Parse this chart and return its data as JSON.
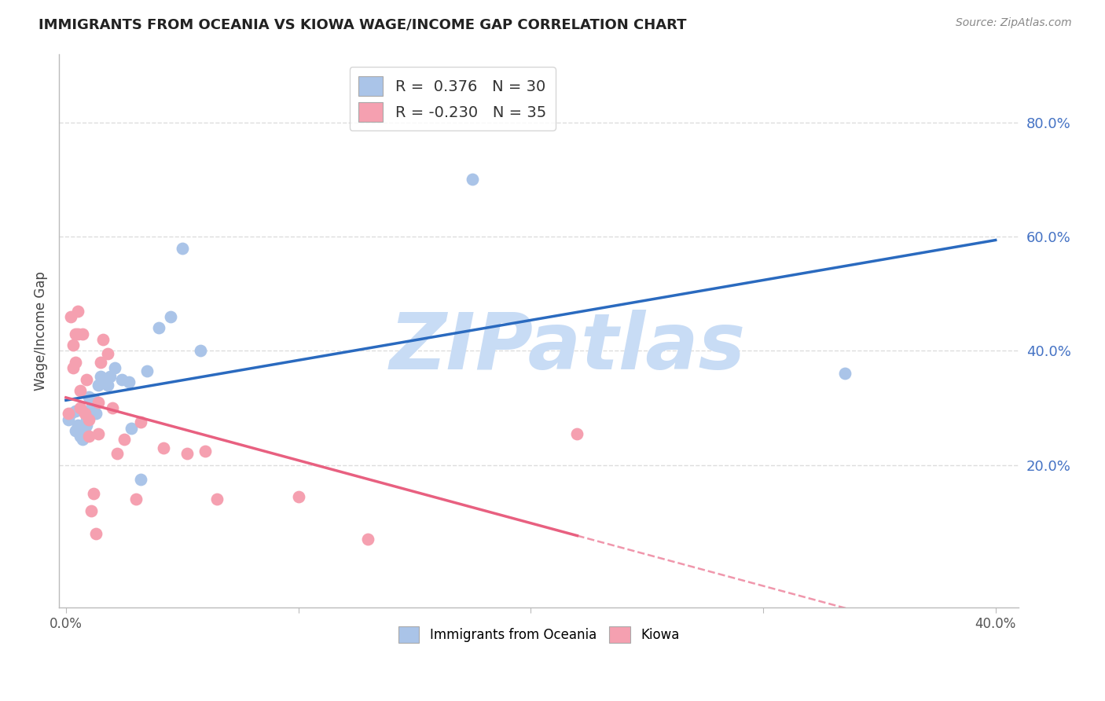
{
  "title": "IMMIGRANTS FROM OCEANIA VS KIOWA WAGE/INCOME GAP CORRELATION CHART",
  "source": "Source: ZipAtlas.com",
  "ylabel": "Wage/Income Gap",
  "legend_blue_label": "Immigrants from Oceania",
  "legend_pink_label": "Kiowa",
  "R_blue": 0.376,
  "N_blue": 30,
  "R_pink": -0.23,
  "N_pink": 35,
  "xlim": [
    -0.003,
    0.41
  ],
  "ylim": [
    -0.05,
    0.92
  ],
  "yticks_right": [
    0.2,
    0.4,
    0.6,
    0.8
  ],
  "ytick_labels_right": [
    "20.0%",
    "40.0%",
    "60.0%",
    "80.0%"
  ],
  "xticks": [
    0.0,
    0.1,
    0.2,
    0.3,
    0.4
  ],
  "xtick_labels": [
    "0.0%",
    "",
    "",
    "",
    "40.0%"
  ],
  "background_color": "#ffffff",
  "grid_color": "#dddddd",
  "blue_dot_color": "#aac4e8",
  "pink_dot_color": "#f5a0b0",
  "blue_line_color": "#2a6abf",
  "pink_line_color": "#e86080",
  "watermark_text": "ZIPatlas",
  "watermark_color": "#c8dcf5",
  "blue_scatter_x": [
    0.001,
    0.002,
    0.004,
    0.004,
    0.005,
    0.006,
    0.007,
    0.008,
    0.009,
    0.009,
    0.01,
    0.011,
    0.012,
    0.013,
    0.014,
    0.015,
    0.018,
    0.019,
    0.021,
    0.024,
    0.027,
    0.028,
    0.032,
    0.035,
    0.04,
    0.045,
    0.05,
    0.058,
    0.175,
    0.335
  ],
  "blue_scatter_y": [
    0.28,
    0.29,
    0.26,
    0.295,
    0.27,
    0.25,
    0.245,
    0.265,
    0.27,
    0.28,
    0.32,
    0.3,
    0.315,
    0.29,
    0.34,
    0.355,
    0.34,
    0.355,
    0.37,
    0.35,
    0.345,
    0.265,
    0.175,
    0.365,
    0.44,
    0.46,
    0.58,
    0.4,
    0.7,
    0.36
  ],
  "pink_scatter_x": [
    0.001,
    0.002,
    0.003,
    0.003,
    0.004,
    0.004,
    0.005,
    0.005,
    0.006,
    0.006,
    0.007,
    0.008,
    0.009,
    0.01,
    0.01,
    0.011,
    0.012,
    0.013,
    0.014,
    0.014,
    0.015,
    0.016,
    0.018,
    0.02,
    0.022,
    0.025,
    0.03,
    0.032,
    0.042,
    0.052,
    0.06,
    0.065,
    0.1,
    0.13,
    0.22
  ],
  "pink_scatter_y": [
    0.29,
    0.46,
    0.41,
    0.37,
    0.38,
    0.43,
    0.43,
    0.47,
    0.3,
    0.33,
    0.43,
    0.29,
    0.35,
    0.25,
    0.28,
    0.12,
    0.15,
    0.08,
    0.255,
    0.31,
    0.38,
    0.42,
    0.395,
    0.3,
    0.22,
    0.245,
    0.14,
    0.275,
    0.23,
    0.22,
    0.225,
    0.14,
    0.145,
    0.07,
    0.255
  ]
}
